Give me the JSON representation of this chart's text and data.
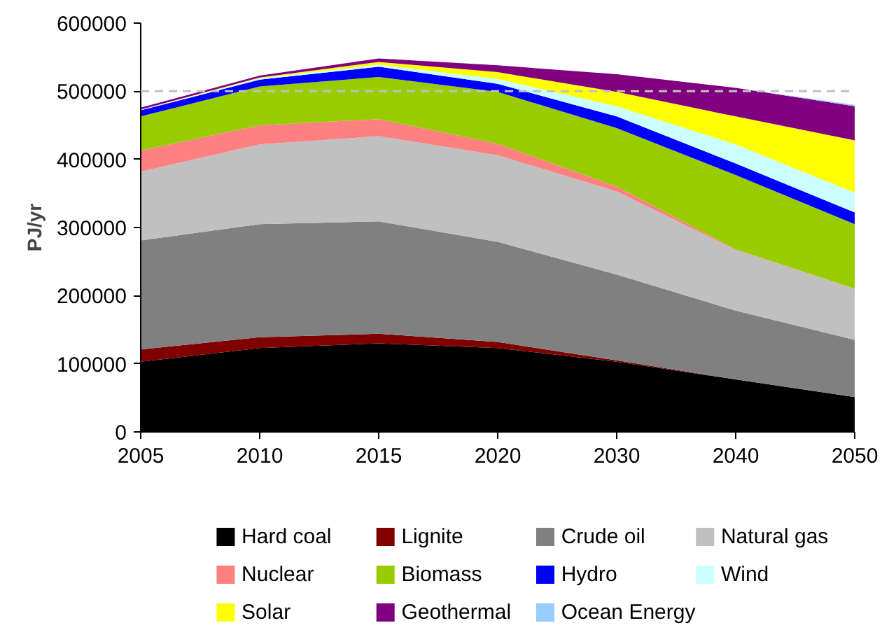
{
  "chart_data": {
    "type": "area",
    "stacked": true,
    "ylabel": "PJ/yr",
    "categories": [
      "2005",
      "2010",
      "2015",
      "2020",
      "2030",
      "2040",
      "2050"
    ],
    "ylim": [
      0,
      600000
    ],
    "yticks": [
      0,
      100000,
      200000,
      300000,
      400000,
      500000,
      600000
    ],
    "grid": false,
    "legend": "bottom",
    "ref_lines": [
      {
        "axis": "y",
        "value": 500000,
        "label": null,
        "color": "#c0c0c0",
        "line_style": "dashed"
      }
    ],
    "series": [
      {
        "name": "Hard coal",
        "color": "#000000",
        "values": [
          103000,
          123000,
          130000,
          123000,
          103000,
          77000,
          51000
        ]
      },
      {
        "name": "Lignite",
        "color": "#800000",
        "values": [
          18000,
          16000,
          14000,
          9000,
          2000,
          0,
          0
        ]
      },
      {
        "name": "Crude oil",
        "color": "#808080",
        "values": [
          160000,
          166000,
          165000,
          147000,
          126000,
          101000,
          84000
        ]
      },
      {
        "name": "Natural gas",
        "color": "#c0c0c0",
        "values": [
          101000,
          117000,
          125000,
          127000,
          122000,
          89000,
          75000
        ]
      },
      {
        "name": "Nuclear",
        "color": "#ff8080",
        "values": [
          31000,
          28000,
          25000,
          17000,
          7000,
          1000,
          0
        ]
      },
      {
        "name": "Biomass",
        "color": "#99cc00",
        "values": [
          50000,
          57000,
          62000,
          76000,
          86000,
          109000,
          95000
        ]
      },
      {
        "name": "Hydro",
        "color": "#0000ff",
        "values": [
          9000,
          10000,
          15000,
          12000,
          17000,
          17000,
          17000
        ]
      },
      {
        "name": "Wind",
        "color": "#ccffff",
        "values": [
          1000,
          2000,
          3000,
          7000,
          15000,
          28000,
          29000
        ]
      },
      {
        "name": "Solar",
        "color": "#ffff00",
        "values": [
          0,
          1000,
          4000,
          10000,
          21000,
          41000,
          77000
        ]
      },
      {
        "name": "Geothermal",
        "color": "#800080",
        "values": [
          3000,
          3000,
          5000,
          10000,
          26000,
          42000,
          50000
        ]
      },
      {
        "name": "Ocean Energy",
        "color": "#99ccff",
        "values": [
          0,
          0,
          0,
          0,
          0,
          0,
          2000
        ]
      }
    ]
  }
}
